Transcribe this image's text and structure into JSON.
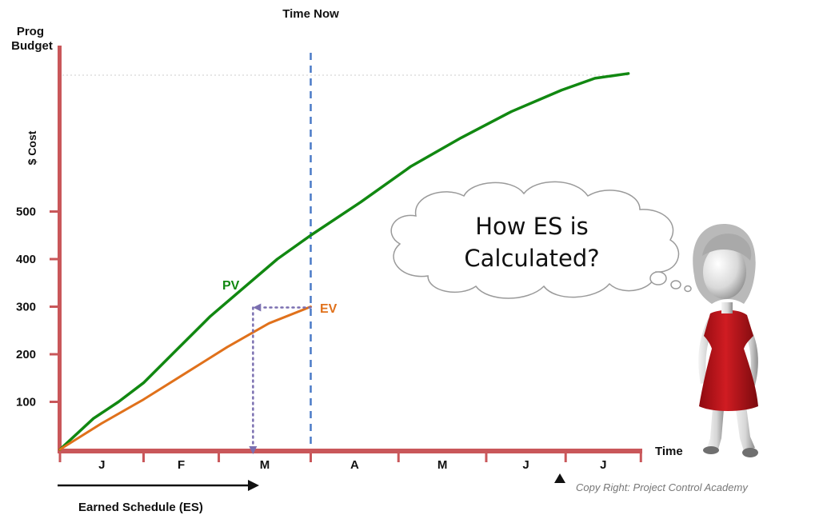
{
  "chart_data": {
    "type": "line",
    "title": "Time Now",
    "ylabel_top": "Prog Budget",
    "ylabel": "$ Cost",
    "xlabel": "Time",
    "y_ticks": [
      100,
      200,
      300,
      400,
      500
    ],
    "ylim": [
      0,
      850
    ],
    "month_labels": [
      "J",
      "F",
      "M",
      "A",
      "M",
      "J",
      "J"
    ],
    "time_now_month": 3,
    "series": [
      {
        "name": "PV",
        "color": "#118811",
        "x": [
          0,
          0.4,
          0.7,
          1.0,
          1.4,
          1.8,
          2.2,
          2.6,
          3.0,
          3.6,
          4.2,
          4.8,
          5.4,
          6.0,
          6.4,
          6.8
        ],
        "values": [
          0,
          65,
          100,
          140,
          210,
          280,
          340,
          400,
          450,
          520,
          595,
          655,
          710,
          755,
          780,
          790
        ]
      },
      {
        "name": "EV",
        "color": "#e0711b",
        "x": [
          0,
          0.5,
          1.0,
          1.5,
          2.0,
          2.5,
          3.0
        ],
        "values": [
          0,
          55,
          105,
          160,
          215,
          265,
          300
        ]
      }
    ],
    "annotation": {
      "earned_schedule_label": "Earned Schedule (ES)",
      "es_month_value": 2.3
    }
  },
  "bubble": {
    "line1": "How ES is",
    "line2": "Calculated?"
  },
  "copyright": "Copy Right: Project Control Academy",
  "colors": {
    "axis": "#c9575a",
    "time_now": "#4a7ac7",
    "dotted_guide": "#7a6fb0",
    "person_dress": "#c0121a"
  },
  "icons": {
    "person": "thinking-woman-figure",
    "marker": "triangle-marker"
  }
}
